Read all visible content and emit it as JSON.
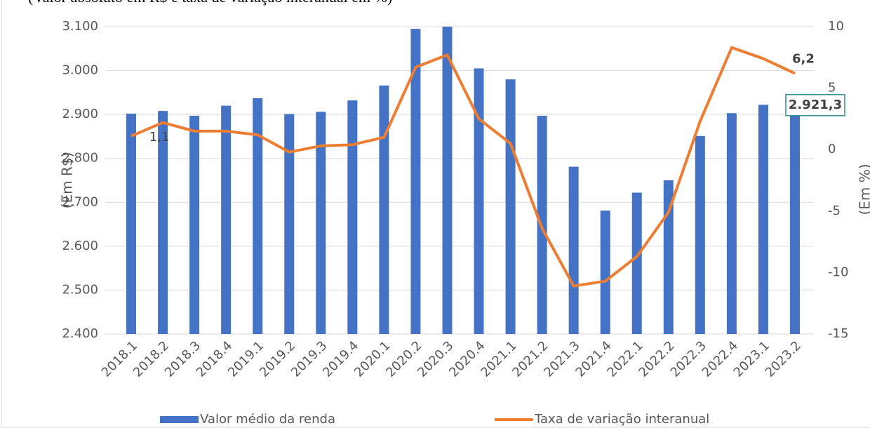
{
  "chart_data": {
    "type": "bar_line",
    "subtitle": "(Valor absoluto em R$ e taxa de variação interanual em %)",
    "ylabel": "(Em R$)",
    "y2label": "(Em %)",
    "categories": [
      "2018.1",
      "2018.2",
      "2018.3",
      "2018.4",
      "2019.1",
      "2019.2",
      "2019.3",
      "2019.4",
      "2020.1",
      "2020.2",
      "2020.3",
      "2020.4",
      "2021.1",
      "2021.2",
      "2021.3",
      "2021.4",
      "2022.1",
      "2022.2",
      "2022.3",
      "2022.4",
      "2023.1",
      "2023.2"
    ],
    "series": [
      {
        "name": "Valor médio da renda",
        "color": "#4472c4",
        "chart": "bar",
        "values": [
          2902,
          2908,
          2897,
          2920,
          2937,
          2901,
          2906,
          2932,
          2966,
          3095,
          3100,
          3005,
          2980,
          2897,
          2781,
          2681,
          2722,
          2750,
          2851,
          2903,
          2922,
          2921.3
        ],
        "value_labels": [
          null,
          null,
          null,
          null,
          null,
          null,
          null,
          null,
          null,
          null,
          null,
          null,
          null,
          null,
          null,
          null,
          null,
          null,
          null,
          null,
          null,
          "2.921,3"
        ]
      },
      {
        "name": "Taxa de variação interanual",
        "color": "#ed7d31",
        "chart": "line",
        "axis": "y2",
        "values": [
          1.1,
          2.2,
          1.5,
          1.5,
          1.2,
          -0.2,
          0.3,
          0.4,
          1.0,
          6.7,
          7.7,
          2.5,
          0.5,
          -6.4,
          -11.1,
          -10.7,
          -8.7,
          -5.1,
          2.3,
          8.3,
          7.4,
          6.2
        ],
        "value_labels": [
          "1,1",
          null,
          null,
          null,
          null,
          null,
          null,
          null,
          null,
          null,
          null,
          null,
          null,
          null,
          null,
          null,
          null,
          null,
          null,
          null,
          null,
          "6,2"
        ]
      }
    ],
    "ylim": [
      2400,
      3100
    ],
    "yticks": [
      {
        "value": 2400,
        "label": "2.400"
      },
      {
        "value": 2500,
        "label": "2.500"
      },
      {
        "value": 2600,
        "label": "2.600"
      },
      {
        "value": 2700,
        "label": "2.700"
      },
      {
        "value": 2800,
        "label": "2.800"
      },
      {
        "value": 2900,
        "label": "2.900"
      },
      {
        "value": 3000,
        "label": "3.000"
      },
      {
        "value": 3100,
        "label": "3.100"
      }
    ],
    "y2lim": [
      -15,
      10
    ],
    "y2ticks": [
      -15,
      -10,
      -5,
      0,
      5,
      10
    ],
    "grid": true
  }
}
